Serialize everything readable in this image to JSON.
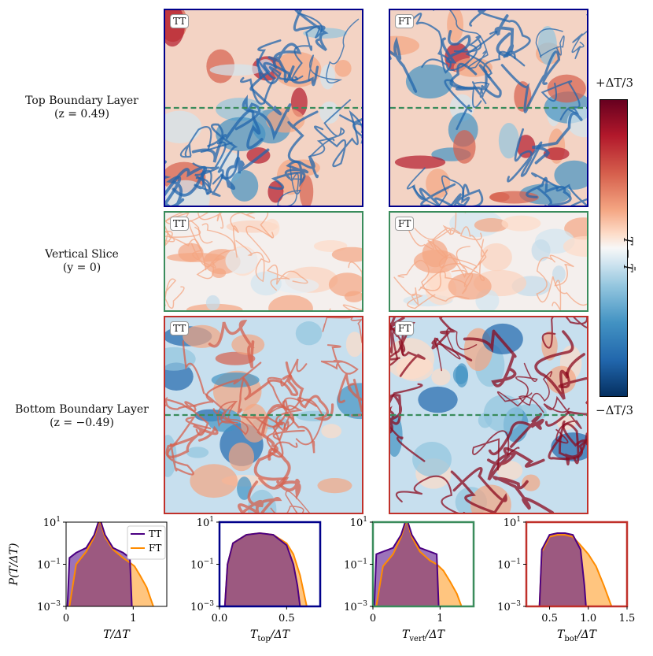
{
  "rows": {
    "top": {
      "title": "Top Boundary Layer",
      "sub": "(z = 0.49)"
    },
    "vert": {
      "title": "Vertical Slice",
      "sub": "(y = 0)"
    },
    "bot": {
      "title": "Bottom Boundary Layer",
      "sub": "(z = −0.49)"
    }
  },
  "tags": {
    "tt": "TT",
    "ft": "FT"
  },
  "colorbar": {
    "top": "+ΔT/3",
    "bottom": "−ΔT/3",
    "label": "T − T̄"
  },
  "colors": {
    "top_frame": "#00008b",
    "vert_frame": "#3a8c5c",
    "bot_frame": "#c0302a",
    "tt": "#4b0082",
    "ft": "#ff8c00",
    "overlap": "#9b5a78"
  },
  "chart_data": [
    {
      "type": "area",
      "name": "pdf-total",
      "xlabel": "T/ΔT",
      "ylabel": "P(T/ΔT)",
      "xlim": [
        0,
        1.5
      ],
      "ylim": [
        0.001,
        10
      ],
      "yscale": "log",
      "xticks": [
        "0",
        "1"
      ],
      "yticks": [
        "10^1",
        "10^-1",
        "10^-3"
      ],
      "legend": [
        "TT",
        "FT"
      ],
      "legend_position": "top-right",
      "series": [
        {
          "name": "TT",
          "x": [
            0.02,
            0.05,
            0.15,
            0.3,
            0.42,
            0.48,
            0.5,
            0.52,
            0.58,
            0.7,
            0.85,
            0.95,
            0.98
          ],
          "y": [
            0.001,
            0.2,
            0.35,
            0.6,
            2.5,
            10,
            15,
            10,
            2.5,
            0.6,
            0.35,
            0.2,
            0.001
          ]
        },
        {
          "name": "FT",
          "x": [
            0.05,
            0.15,
            0.3,
            0.42,
            0.48,
            0.5,
            0.52,
            0.58,
            0.7,
            0.85,
            0.95,
            1.02,
            1.1,
            1.2,
            1.3
          ],
          "y": [
            0.001,
            0.1,
            0.4,
            2,
            8,
            12,
            8,
            2,
            0.5,
            0.2,
            0.12,
            0.08,
            0.03,
            0.008,
            0.001
          ]
        }
      ]
    },
    {
      "type": "area",
      "name": "pdf-top",
      "xlabel": "T_top/ΔT",
      "xlim": [
        0,
        0.75
      ],
      "ylim": [
        0.001,
        10
      ],
      "yscale": "log",
      "xticks": [
        "0.0",
        "0.5"
      ],
      "yticks": [
        "10^1",
        "10^-1",
        "10^-3"
      ],
      "series": [
        {
          "name": "TT",
          "x": [
            0.04,
            0.06,
            0.1,
            0.2,
            0.3,
            0.4,
            0.5,
            0.55,
            0.58,
            0.6
          ],
          "y": [
            0.001,
            0.1,
            1,
            2.5,
            3,
            2.5,
            0.8,
            0.1,
            0.01,
            0.001
          ]
        },
        {
          "name": "FT",
          "x": [
            0.04,
            0.06,
            0.1,
            0.2,
            0.3,
            0.4,
            0.5,
            0.55,
            0.6,
            0.65
          ],
          "y": [
            0.001,
            0.1,
            1,
            2.5,
            3,
            2.5,
            1,
            0.3,
            0.03,
            0.001
          ]
        }
      ]
    },
    {
      "type": "area",
      "name": "pdf-vert",
      "xlabel": "T_vert/ΔT",
      "xlim": [
        0,
        1.5
      ],
      "ylim": [
        0.001,
        10
      ],
      "yscale": "log",
      "xticks": [
        "0",
        "1"
      ],
      "yticks": [
        "10^1",
        "10^-1",
        "10^-3"
      ],
      "series": [
        {
          "name": "TT",
          "x": [
            0.02,
            0.05,
            0.15,
            0.3,
            0.42,
            0.48,
            0.5,
            0.52,
            0.58,
            0.7,
            0.85,
            0.95,
            0.98
          ],
          "y": [
            0.001,
            0.3,
            0.4,
            0.6,
            2.5,
            10,
            15,
            10,
            2.5,
            0.6,
            0.4,
            0.3,
            0.001
          ]
        },
        {
          "name": "FT",
          "x": [
            0.05,
            0.15,
            0.3,
            0.42,
            0.48,
            0.5,
            0.52,
            0.58,
            0.7,
            0.85,
            0.95,
            1.05,
            1.15,
            1.25,
            1.32
          ],
          "y": [
            0.001,
            0.08,
            0.3,
            2,
            8,
            12,
            8,
            2,
            0.4,
            0.15,
            0.1,
            0.05,
            0.015,
            0.004,
            0.001
          ]
        }
      ]
    },
    {
      "type": "area",
      "name": "pdf-bot",
      "xlabel": "T_bot/ΔT",
      "xlim": [
        0.2,
        1.5
      ],
      "ylim": [
        0.001,
        10
      ],
      "yscale": "log",
      "xticks": [
        "0.5",
        "1.0",
        "1.5"
      ],
      "yticks": [
        "10^1",
        "10^-1",
        "10^-3"
      ],
      "series": [
        {
          "name": "TT",
          "x": [
            0.37,
            0.4,
            0.5,
            0.6,
            0.7,
            0.8,
            0.9,
            0.95,
            0.97
          ],
          "y": [
            0.001,
            0.5,
            2.5,
            3,
            3,
            2.5,
            0.5,
            0.01,
            0.001
          ]
        },
        {
          "name": "FT",
          "x": [
            0.37,
            0.4,
            0.5,
            0.6,
            0.7,
            0.8,
            0.9,
            1.0,
            1.1,
            1.2,
            1.3
          ],
          "y": [
            0.001,
            0.4,
            2,
            2.5,
            2.5,
            2,
            0.8,
            0.3,
            0.08,
            0.01,
            0.001
          ]
        }
      ]
    }
  ]
}
